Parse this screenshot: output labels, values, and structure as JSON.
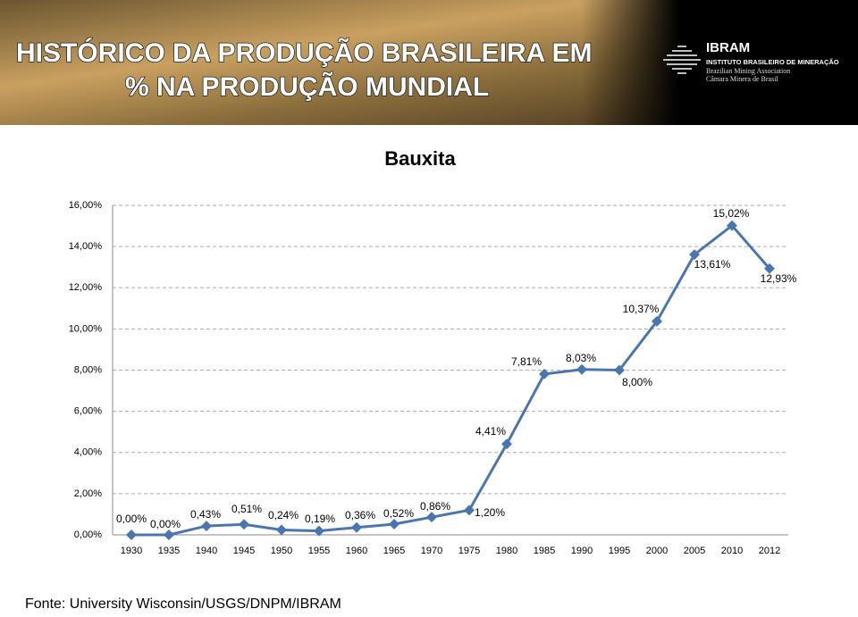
{
  "header": {
    "title_lines": [
      "HISTÓRICO DA PRODUÇÃO BRASILEIRA EM",
      "% NA PRODUÇÃO MUNDIAL"
    ],
    "logo": {
      "name": "IBRAM",
      "lines": [
        "INSTITUTO BRASILEIRO DE MINERAÇÃO",
        "Brazilian Mining Association",
        "Câmara Minera de Brasil"
      ]
    }
  },
  "chart_data": {
    "type": "line",
    "title": "Bauxita",
    "categories": [
      "1930",
      "1935",
      "1940",
      "1945",
      "1950",
      "1955",
      "1960",
      "1965",
      "1970",
      "1975",
      "1980",
      "1985",
      "1990",
      "1995",
      "2000",
      "2005",
      "2010",
      "2012"
    ],
    "series": [
      {
        "name": "Bauxita",
        "color": "#4a76b0",
        "values": [
          0,
          0,
          0.43,
          0.51,
          0.24,
          0.19,
          0.36,
          0.52,
          0.86,
          1.2,
          4.41,
          7.81,
          8.03,
          8.0,
          10.37,
          13.61,
          15.02,
          12.93
        ],
        "value_labels": [
          "0,00%",
          "0,00%",
          "0,43%",
          "0,51%",
          "0,24%",
          "0,19%",
          "0,36%",
          "0,52%",
          "0,86%",
          "1,20%",
          "4,41%",
          "7,81%",
          "8,03%",
          "8,00%",
          "10,37%",
          "13,61%",
          "15,02%",
          "12,93%"
        ]
      }
    ],
    "ylim": [
      0,
      16
    ],
    "yticks": [
      {
        "value": 0,
        "label": "0,00%"
      },
      {
        "value": 2,
        "label": "2,00%"
      },
      {
        "value": 4,
        "label": "4,00%"
      },
      {
        "value": 6,
        "label": "6,00%"
      },
      {
        "value": 8,
        "label": "8,00%"
      },
      {
        "value": 10,
        "label": "10,00%"
      },
      {
        "value": 12,
        "label": "12,00%"
      },
      {
        "value": 14,
        "label": "14,00%"
      },
      {
        "value": 16,
        "label": "16,00%"
      }
    ],
    "grid": true
  },
  "source": "Fonte: University Wisconsin/USGS/DNPM/IBRAM"
}
